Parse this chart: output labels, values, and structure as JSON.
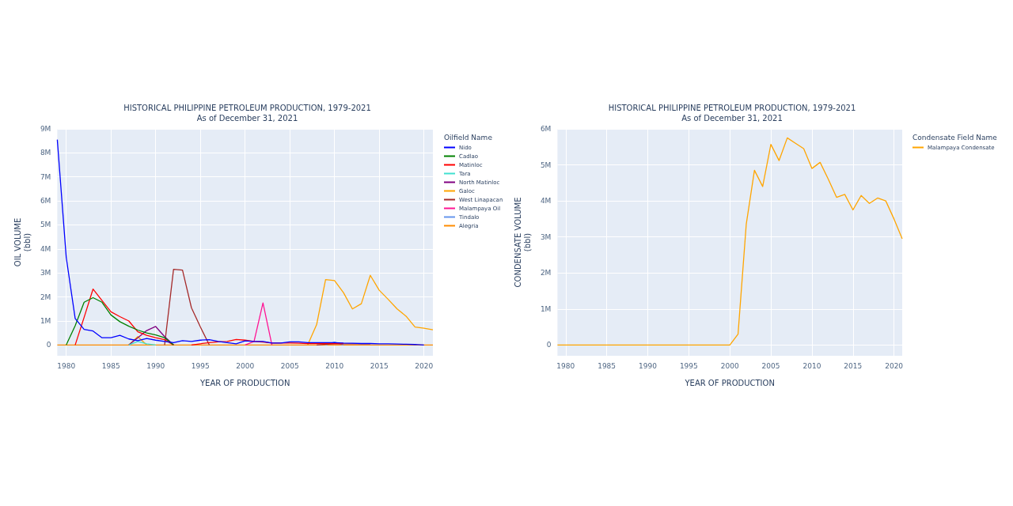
{
  "chart_data": [
    {
      "type": "line",
      "title": "HISTORICAL PHILIPPINE PETROLEUM PRODUCTION, 1979-2021",
      "subtitle": "As of December 31, 2021",
      "xlabel": "YEAR OF PRODUCTION",
      "ylabel": "OIL VOLUME\n(bbl)",
      "legend_title": "Oilfield Name",
      "legend": "top right",
      "grid": true,
      "marker": "none",
      "line_style": "solid",
      "x": [
        1979,
        1980,
        1981,
        1982,
        1983,
        1984,
        1985,
        1986,
        1987,
        1988,
        1989,
        1990,
        1991,
        1992,
        1993,
        1994,
        1995,
        1996,
        1997,
        1998,
        1999,
        2000,
        2001,
        2002,
        2003,
        2004,
        2005,
        2006,
        2007,
        2008,
        2009,
        2010,
        2011,
        2012,
        2013,
        2014,
        2015,
        2016,
        2017,
        2018,
        2019,
        2020,
        2021
      ],
      "xlim": [
        1979,
        2021
      ],
      "xticks": [
        1980,
        1985,
        1990,
        1995,
        2000,
        2005,
        2010,
        2015,
        2020
      ],
      "ylim": [
        -450000,
        9000000
      ],
      "yticks": [
        {
          "value": 0,
          "label": "0"
        },
        {
          "value": 1000000,
          "label": "1M"
        },
        {
          "value": 2000000,
          "label": "2M"
        },
        {
          "value": 3000000,
          "label": "3M"
        },
        {
          "value": 4000000,
          "label": "4M"
        },
        {
          "value": 5000000,
          "label": "5M"
        },
        {
          "value": 6000000,
          "label": "6M"
        },
        {
          "value": 7000000,
          "label": "7M"
        },
        {
          "value": 8000000,
          "label": "8M"
        },
        {
          "value": 9000000,
          "label": "9M"
        }
      ],
      "series": [
        {
          "name": "Nido",
          "color": "#0000ff",
          "values": [
            8550000,
            3650000,
            1100000,
            650000,
            580000,
            300000,
            300000,
            400000,
            250000,
            180000,
            270000,
            200000,
            150000,
            100000,
            180000,
            150000,
            200000,
            220000,
            150000,
            100000,
            50000,
            170000,
            150000,
            150000,
            80000,
            80000,
            130000,
            130000,
            100000,
            100000,
            100000,
            100000,
            80000,
            70000,
            60000,
            60000,
            50000,
            50000,
            40000,
            30000,
            20000,
            0,
            null
          ]
        },
        {
          "name": "Cadlao",
          "color": "#008000",
          "values": [
            null,
            0,
            800000,
            1780000,
            1970000,
            1780000,
            1250000,
            970000,
            780000,
            620000,
            500000,
            420000,
            300000,
            0,
            null,
            null,
            null,
            null,
            null,
            null,
            null,
            null,
            null,
            null,
            null,
            null,
            null,
            null,
            null,
            null,
            null,
            null,
            null,
            null,
            null,
            null,
            null,
            null,
            null,
            null,
            null,
            null,
            null
          ]
        },
        {
          "name": "Matinloc",
          "color": "#ff0000",
          "values": [
            null,
            null,
            0,
            1150000,
            2330000,
            1850000,
            1380000,
            1180000,
            1000000,
            550000,
            400000,
            300000,
            220000,
            0,
            null,
            0,
            50000,
            100000,
            130000,
            150000,
            230000,
            200000,
            150000,
            120000,
            80000,
            80000,
            80000,
            70000,
            60000,
            60000,
            60000,
            60000,
            60000,
            null,
            null,
            null,
            null,
            null,
            null,
            null,
            null,
            null,
            null
          ]
        },
        {
          "name": "Tara",
          "color": "#40e0d0",
          "values": [
            null,
            null,
            null,
            null,
            null,
            null,
            null,
            null,
            0,
            150000,
            50000,
            0,
            null,
            null,
            null,
            null,
            null,
            null,
            null,
            null,
            null,
            null,
            null,
            null,
            null,
            null,
            null,
            null,
            null,
            null,
            null,
            null,
            null,
            null,
            null,
            null,
            null,
            null,
            null,
            null,
            null,
            null,
            null
          ]
        },
        {
          "name": "North Matinloc",
          "color": "#800080",
          "values": [
            null,
            null,
            null,
            null,
            null,
            null,
            null,
            null,
            0,
            300000,
            600000,
            770000,
            350000,
            0,
            null,
            null,
            null,
            null,
            null,
            null,
            null,
            null,
            null,
            null,
            null,
            null,
            null,
            null,
            null,
            null,
            null,
            null,
            null,
            null,
            null,
            null,
            null,
            null,
            null,
            null,
            null,
            null,
            null
          ]
        },
        {
          "name": "Galoc",
          "color": "#ffa500",
          "values": [
            null,
            null,
            null,
            null,
            null,
            null,
            null,
            null,
            0,
            350000,
            0,
            null,
            null,
            null,
            null,
            null,
            null,
            null,
            null,
            null,
            null,
            null,
            null,
            null,
            null,
            null,
            null,
            null,
            0,
            850000,
            2720000,
            2680000,
            2180000,
            1500000,
            1720000,
            2900000,
            2280000,
            1900000,
            1500000,
            1200000,
            750000,
            700000,
            630000
          ]
        },
        {
          "name": "West Linapacan",
          "color": "#a52a2a",
          "values": [
            null,
            null,
            null,
            null,
            null,
            null,
            null,
            null,
            null,
            null,
            null,
            null,
            0,
            3150000,
            3120000,
            1550000,
            750000,
            0,
            null,
            null,
            null,
            null,
            null,
            null,
            null,
            null,
            null,
            null,
            null,
            0,
            30000,
            50000,
            50000,
            50000,
            50000,
            50000,
            null,
            null,
            null,
            null,
            null,
            null,
            null
          ]
        },
        {
          "name": "Malampaya Oil",
          "color": "#ff1493",
          "values": [
            null,
            null,
            null,
            null,
            null,
            null,
            null,
            null,
            null,
            null,
            null,
            null,
            null,
            null,
            null,
            null,
            null,
            null,
            null,
            null,
            null,
            0,
            150000,
            1750000,
            0,
            null,
            null,
            null,
            null,
            null,
            null,
            null,
            null,
            null,
            null,
            null,
            null,
            null,
            null,
            null,
            null,
            null,
            null
          ]
        },
        {
          "name": "Tindalo",
          "color": "#6495ed",
          "values": [
            null,
            null,
            null,
            null,
            null,
            null,
            null,
            null,
            null,
            null,
            null,
            null,
            null,
            null,
            null,
            null,
            null,
            null,
            null,
            null,
            null,
            null,
            null,
            null,
            null,
            null,
            null,
            null,
            null,
            null,
            0,
            120000,
            0,
            null,
            null,
            null,
            null,
            null,
            null,
            null,
            null,
            null,
            null
          ]
        },
        {
          "name": "Alegria",
          "color": "#ff8c00",
          "values": [
            0,
            0,
            0,
            0,
            0,
            0,
            0,
            0,
            0,
            0,
            0,
            0,
            0,
            0,
            0,
            0,
            0,
            0,
            0,
            0,
            0,
            0,
            0,
            0,
            0,
            0,
            0,
            0,
            0,
            0,
            0,
            0,
            0,
            0,
            0,
            0,
            0,
            0,
            0,
            0,
            0,
            0,
            0
          ]
        }
      ]
    },
    {
      "type": "line",
      "title": "HISTORICAL PHILIPPINE PETROLEUM PRODUCTION, 1979-2021",
      "subtitle": "As of December 31, 2021",
      "xlabel": "YEAR OF PRODUCTION",
      "ylabel": "CONDENSATE VOLUME\n(bbl)",
      "legend_title": "Condensate Field Name",
      "legend": "top right",
      "grid": true,
      "marker": "none",
      "line_style": "solid",
      "x": [
        1979,
        1980,
        1981,
        1982,
        1983,
        1984,
        1985,
        1986,
        1987,
        1988,
        1989,
        1990,
        1991,
        1992,
        1993,
        1994,
        1995,
        1996,
        1997,
        1998,
        1999,
        2000,
        2001,
        2002,
        2003,
        2004,
        2005,
        2006,
        2007,
        2008,
        2009,
        2010,
        2011,
        2012,
        2013,
        2014,
        2015,
        2016,
        2017,
        2018,
        2019,
        2020,
        2021
      ],
      "xlim": [
        1979,
        2021
      ],
      "xticks": [
        1980,
        1985,
        1990,
        1995,
        2000,
        2005,
        2010,
        2015,
        2020
      ],
      "ylim": [
        -300000,
        6000000
      ],
      "yticks": [
        {
          "value": 0,
          "label": "0"
        },
        {
          "value": 1000000,
          "label": "1M"
        },
        {
          "value": 2000000,
          "label": "2M"
        },
        {
          "value": 3000000,
          "label": "3M"
        },
        {
          "value": 4000000,
          "label": "4M"
        },
        {
          "value": 5000000,
          "label": "5M"
        },
        {
          "value": 6000000,
          "label": "6M"
        }
      ],
      "series": [
        {
          "name": "Malampaya Condensate",
          "color": "#ffa500",
          "values": [
            0,
            0,
            0,
            0,
            0,
            0,
            0,
            0,
            0,
            0,
            0,
            0,
            0,
            0,
            0,
            0,
            0,
            0,
            0,
            0,
            0,
            0,
            300000,
            3350000,
            4850000,
            4400000,
            5570000,
            5120000,
            5750000,
            5600000,
            5450000,
            4900000,
            5070000,
            4600000,
            4100000,
            4180000,
            3750000,
            4150000,
            3930000,
            4080000,
            4000000,
            3500000,
            2950000
          ]
        }
      ]
    }
  ]
}
